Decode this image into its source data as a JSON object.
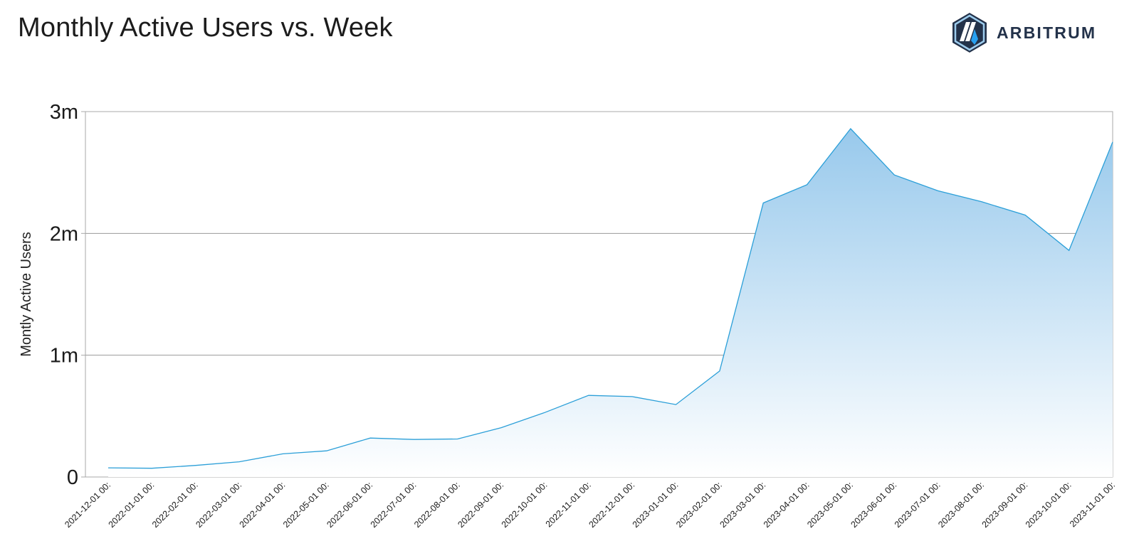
{
  "header": {
    "title": "Monthly Active Users vs. Week",
    "logo_text": "ARBITRUM",
    "logo_icon": "arbitrum-logo-icon"
  },
  "colors": {
    "line": "#2b9fd8",
    "fill_top": "#98c9ec",
    "fill_bottom": "#ffffff",
    "grid": "#9a9a9a",
    "frame": "#a8a8a8",
    "logo_navy": "#23324a",
    "logo_blue": "#28a0f0"
  },
  "chart_data": {
    "type": "area",
    "title": "Monthly Active Users vs. Week",
    "xlabel": "",
    "ylabel": "Montly Active Users",
    "ylim": [
      0,
      3000000
    ],
    "yticks": [
      {
        "value": 0,
        "label": "0"
      },
      {
        "value": 1000000,
        "label": "1m"
      },
      {
        "value": 2000000,
        "label": "2m"
      },
      {
        "value": 3000000,
        "label": "3m"
      }
    ],
    "grid": true,
    "x": [
      "2021-12-01 00:",
      "2022-01-01 00:",
      "2022-02-01 00:",
      "2022-03-01 00:",
      "2022-04-01 00:",
      "2022-05-01 00:",
      "2022-06-01 00:",
      "2022-07-01 00:",
      "2022-08-01 00:",
      "2022-09-01 00:",
      "2022-10-01 00:",
      "2022-11-01 00:",
      "2022-12-01 00:",
      "2023-01-01 00:",
      "2023-02-01 00:",
      "2023-03-01 00:",
      "2023-04-01 00:",
      "2023-05-01 00:",
      "2023-06-01 00:",
      "2023-07-01 00:",
      "2023-08-01 00:",
      "2023-09-01 00:",
      "2023-10-01 00:",
      "2023-11-01 00:"
    ],
    "values": [
      75000,
      72000,
      95000,
      125000,
      190000,
      215000,
      320000,
      308000,
      312000,
      405000,
      530000,
      670000,
      660000,
      595000,
      870000,
      2250000,
      2400000,
      2860000,
      2480000,
      2350000,
      2260000,
      2150000,
      1860000,
      2750000
    ],
    "last_point_at_right_edge": true
  }
}
